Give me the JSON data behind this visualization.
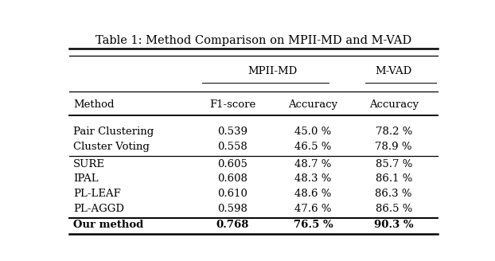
{
  "title": "Table 1: Method Comparison on MPII-MD and M-VAD",
  "col_headers_level2": [
    "Method",
    "F1-score",
    "Accuracy",
    "Accuracy"
  ],
  "rows": [
    [
      "Pair Clustering",
      "0.539",
      "45.0 %",
      "78.2 %"
    ],
    [
      "Cluster Voting",
      "0.558",
      "46.5 %",
      "78.9 %"
    ],
    [
      "SURE",
      "0.605",
      "48.7 %",
      "85.7 %"
    ],
    [
      "IPAL",
      "0.608",
      "48.3 %",
      "86.1 %"
    ],
    [
      "PL-LEAF",
      "0.610",
      "48.6 %",
      "86.3 %"
    ],
    [
      "PL-AGGD",
      "0.598",
      "47.6 %",
      "86.5 %"
    ],
    [
      "Our method",
      "0.768",
      "76.5 %",
      "90.3 %"
    ]
  ],
  "background": "#ffffff",
  "text_color": "#000000",
  "figsize": [
    6.22,
    3.28
  ],
  "dpi": 100
}
